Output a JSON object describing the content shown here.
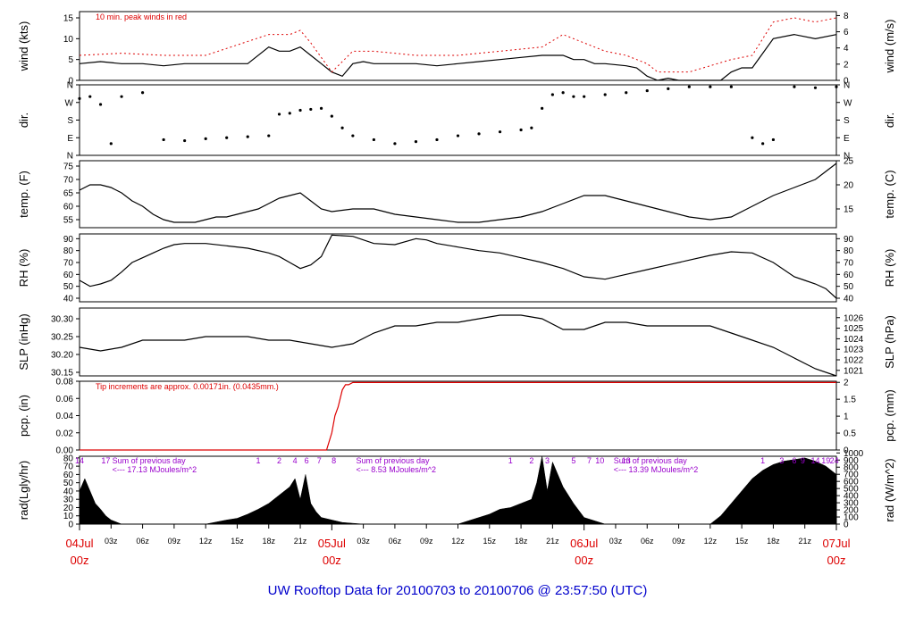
{
  "footer_title": "UW Rooftop Data for 20100703  to  20100706 @ 23:57:50  (UTC)",
  "colors": {
    "ink": "#000000",
    "precip": "#dd0000",
    "rad_annot": "#9900cc",
    "footer": "#0000cc",
    "date_red": "#dd0000"
  },
  "time_axis": {
    "hours_total": 72,
    "hour_ticks": [
      {
        "h": 3,
        "label": "03z"
      },
      {
        "h": 6,
        "label": "06z"
      },
      {
        "h": 9,
        "label": "09z"
      },
      {
        "h": 12,
        "label": "12z"
      },
      {
        "h": 15,
        "label": "15z"
      },
      {
        "h": 18,
        "label": "18z"
      },
      {
        "h": 21,
        "label": "21z"
      },
      {
        "h": 27,
        "label": "03z"
      },
      {
        "h": 30,
        "label": "06z"
      },
      {
        "h": 33,
        "label": "09z"
      },
      {
        "h": 36,
        "label": "12z"
      },
      {
        "h": 39,
        "label": "15z"
      },
      {
        "h": 42,
        "label": "18z"
      },
      {
        "h": 45,
        "label": "21z"
      },
      {
        "h": 51,
        "label": "03z"
      },
      {
        "h": 54,
        "label": "06z"
      },
      {
        "h": 57,
        "label": "09z"
      },
      {
        "h": 60,
        "label": "12z"
      },
      {
        "h": 63,
        "label": "15z"
      },
      {
        "h": 66,
        "label": "18z"
      },
      {
        "h": 69,
        "label": "21z"
      }
    ],
    "day_labels": [
      {
        "h": 0,
        "date": "04Jul",
        "hour": "00z"
      },
      {
        "h": 24,
        "date": "05Jul",
        "hour": "00z"
      },
      {
        "h": 48,
        "date": "06Jul",
        "hour": "00z"
      },
      {
        "h": 72,
        "date": "07Jul",
        "hour": "00z"
      }
    ]
  },
  "chart_data": [
    {
      "type": "line",
      "name_key": "wind",
      "ylabel_left": "wind (kts)",
      "ylabel_right": "wind (m/s)",
      "ylim": [
        0,
        16.5
      ],
      "left_ticks": [
        0,
        5,
        10,
        15
      ],
      "right_ticks": [
        {
          "v": 0,
          "label": "0"
        },
        {
          "v": 3.89,
          "label": "2"
        },
        {
          "v": 7.78,
          "label": "4"
        },
        {
          "v": 11.66,
          "label": "6"
        },
        {
          "v": 15.55,
          "label": "8"
        }
      ],
      "annotation": "10 min. peak winds in red",
      "series": [
        {
          "color": "#000000",
          "x": [
            0,
            2,
            4,
            6,
            8,
            10,
            12,
            14,
            16,
            18,
            19,
            20,
            21,
            22,
            23,
            24,
            25,
            26,
            27,
            28,
            30,
            32,
            34,
            36,
            38,
            40,
            42,
            44,
            46,
            47,
            48,
            49,
            50,
            52,
            53,
            54,
            55,
            56,
            57,
            58,
            59,
            60,
            61,
            62,
            63,
            64,
            66,
            68,
            70,
            72
          ],
          "y": [
            4,
            4.5,
            4,
            4,
            3.5,
            4,
            4,
            4,
            4,
            8,
            7,
            7,
            8,
            6,
            4,
            2,
            1,
            4,
            4.5,
            4,
            4,
            4,
            3.5,
            4,
            4.5,
            5,
            5.5,
            6,
            6,
            5,
            5,
            4,
            4,
            3.5,
            3,
            1,
            0,
            0.5,
            0,
            0,
            0,
            0,
            0,
            2,
            3,
            3,
            10,
            11,
            10,
            11
          ]
        },
        {
          "color": "#dd0000",
          "x": [
            0,
            4,
            8,
            12,
            18,
            20,
            21,
            22,
            24,
            26,
            28,
            32,
            36,
            40,
            44,
            46,
            48,
            50,
            52,
            54,
            55,
            58,
            62,
            64,
            66,
            68,
            70,
            72
          ],
          "y": [
            6,
            6.5,
            6,
            6,
            11,
            11,
            12,
            9,
            2,
            7,
            7,
            6,
            6,
            7,
            8,
            11,
            9,
            7,
            6,
            4,
            2,
            2,
            5,
            6,
            14,
            15,
            14,
            15
          ]
        }
      ]
    },
    {
      "type": "scatter",
      "name_key": "dir",
      "ylabel_left": "dir.",
      "ylabel_right": "dir.",
      "ylim": [
        0,
        360
      ],
      "left_ticks": [
        {
          "v": 0,
          "label": "N"
        },
        {
          "v": 90,
          "label": "E"
        },
        {
          "v": 180,
          "label": "S"
        },
        {
          "v": 270,
          "label": "W"
        },
        {
          "v": 360,
          "label": "N"
        }
      ],
      "right_ticks": [
        {
          "v": 0,
          "label": "N"
        },
        {
          "v": 90,
          "label": "E"
        },
        {
          "v": 180,
          "label": "S"
        },
        {
          "v": 270,
          "label": "W"
        },
        {
          "v": 360,
          "label": "N"
        }
      ],
      "x": [
        0,
        1,
        2,
        3,
        4,
        6,
        8,
        10,
        12,
        14,
        16,
        18,
        19,
        20,
        21,
        22,
        23,
        24,
        25,
        26,
        28,
        30,
        32,
        34,
        36,
        38,
        40,
        42,
        43,
        44,
        45,
        46,
        47,
        48,
        50,
        52,
        54,
        56,
        58,
        60,
        62,
        64,
        65,
        66,
        68,
        70,
        72
      ],
      "y": [
        290,
        300,
        260,
        60,
        300,
        320,
        80,
        75,
        85,
        90,
        95,
        100,
        210,
        215,
        230,
        235,
        240,
        200,
        140,
        100,
        80,
        60,
        70,
        80,
        100,
        110,
        120,
        130,
        140,
        240,
        310,
        320,
        300,
        300,
        310,
        320,
        330,
        340,
        350,
        350,
        350,
        90,
        60,
        80,
        350,
        345,
        350
      ]
    },
    {
      "type": "line",
      "name_key": "temp",
      "ylabel_left": "temp. (F)",
      "ylabel_right": "temp. (C)",
      "ylim": [
        52,
        77
      ],
      "left_ticks": [
        55,
        60,
        65,
        70,
        75
      ],
      "right_ticks": [
        {
          "v": 59,
          "label": "15"
        },
        {
          "v": 68,
          "label": "20"
        },
        {
          "v": 77,
          "label": "25"
        }
      ],
      "x": [
        0,
        1,
        2,
        3,
        4,
        5,
        6,
        7,
        8,
        9,
        10,
        11,
        12,
        13,
        14,
        15,
        16,
        17,
        18,
        19,
        20,
        21,
        22,
        23,
        24,
        26,
        28,
        30,
        32,
        34,
        36,
        38,
        40,
        42,
        44,
        46,
        48,
        50,
        52,
        54,
        56,
        58,
        60,
        62,
        64,
        66,
        68,
        70,
        71,
        72
      ],
      "y": [
        66,
        68,
        68,
        67,
        65,
        62,
        60,
        57,
        55,
        54,
        54,
        54,
        55,
        56,
        56,
        57,
        58,
        59,
        61,
        63,
        64,
        65,
        62,
        59,
        58,
        59,
        59,
        57,
        56,
        55,
        54,
        54,
        55,
        56,
        58,
        61,
        64,
        64,
        62,
        60,
        58,
        56,
        55,
        56,
        60,
        64,
        67,
        70,
        73,
        76
      ]
    },
    {
      "type": "line",
      "name_key": "rh",
      "ylabel_left": "RH (%)",
      "ylabel_right": "RH (%)",
      "ylim": [
        37,
        94
      ],
      "left_ticks": [
        40,
        50,
        60,
        70,
        80,
        90
      ],
      "right_ticks": [
        {
          "v": 40,
          "label": "40"
        },
        {
          "v": 50,
          "label": "50"
        },
        {
          "v": 60,
          "label": "60"
        },
        {
          "v": 70,
          "label": "70"
        },
        {
          "v": 80,
          "label": "80"
        },
        {
          "v": 90,
          "label": "90"
        }
      ],
      "x": [
        0,
        1,
        2,
        3,
        4,
        5,
        6,
        7,
        8,
        9,
        10,
        11,
        12,
        14,
        16,
        18,
        19,
        20,
        21,
        22,
        23,
        24,
        26,
        28,
        30,
        32,
        33,
        34,
        36,
        38,
        40,
        42,
        44,
        46,
        48,
        50,
        52,
        54,
        56,
        58,
        60,
        62,
        64,
        66,
        68,
        69,
        70,
        71,
        72
      ],
      "y": [
        55,
        50,
        52,
        55,
        62,
        70,
        74,
        78,
        82,
        85,
        86,
        86,
        86,
        84,
        82,
        78,
        75,
        70,
        65,
        68,
        75,
        93,
        92,
        86,
        85,
        90,
        89,
        86,
        83,
        80,
        78,
        74,
        70,
        65,
        58,
        56,
        60,
        64,
        68,
        72,
        76,
        79,
        78,
        70,
        58,
        55,
        52,
        48,
        40
      ]
    },
    {
      "type": "line",
      "name_key": "slp",
      "ylabel_left": "SLP (inHg)",
      "ylabel_right": "SLP (hPa)",
      "ylim": [
        30.14,
        30.33
      ],
      "left_ticks": [
        {
          "v": 30.15,
          "label": "30.15"
        },
        {
          "v": 30.2,
          "label": "30.20"
        },
        {
          "v": 30.25,
          "label": "30.25"
        },
        {
          "v": 30.3,
          "label": "30.30"
        }
      ],
      "right_ticks": [
        {
          "v": 30.1555,
          "label": "1021"
        },
        {
          "v": 30.185,
          "label": "1022"
        },
        {
          "v": 30.2145,
          "label": "1023"
        },
        {
          "v": 30.244,
          "label": "1024"
        },
        {
          "v": 30.2736,
          "label": "1025"
        },
        {
          "v": 30.3031,
          "label": "1026"
        }
      ],
      "x": [
        0,
        2,
        4,
        6,
        8,
        10,
        12,
        14,
        16,
        18,
        20,
        22,
        24,
        26,
        28,
        30,
        32,
        34,
        36,
        38,
        40,
        42,
        44,
        46,
        48,
        50,
        52,
        54,
        56,
        58,
        60,
        62,
        64,
        66,
        68,
        70,
        72
      ],
      "y": [
        30.22,
        30.21,
        30.22,
        30.24,
        30.24,
        30.24,
        30.25,
        30.25,
        30.25,
        30.24,
        30.24,
        30.23,
        30.22,
        30.23,
        30.26,
        30.28,
        30.28,
        30.29,
        30.29,
        30.3,
        30.31,
        30.31,
        30.3,
        30.27,
        30.27,
        30.29,
        30.29,
        30.28,
        30.28,
        30.28,
        30.28,
        30.26,
        30.24,
        30.22,
        30.19,
        30.16,
        30.14
      ]
    },
    {
      "type": "line",
      "name_key": "pcp",
      "ylabel_left": "pcp. (in)",
      "ylabel_right": "pcp. (mm)",
      "ylim": [
        0,
        0.08
      ],
      "left_ticks": [
        {
          "v": 0,
          "label": "0.00"
        },
        {
          "v": 0.02,
          "label": "0.02"
        },
        {
          "v": 0.04,
          "label": "0.04"
        },
        {
          "v": 0.06,
          "label": "0.06"
        },
        {
          "v": 0.08,
          "label": "0.08"
        }
      ],
      "right_ticks": [
        {
          "v": 0,
          "label": "0"
        },
        {
          "v": 0.01969,
          "label": "0.5"
        },
        {
          "v": 0.03937,
          "label": "1"
        },
        {
          "v": 0.05906,
          "label": "1.5"
        },
        {
          "v": 0.07874,
          "label": "2"
        }
      ],
      "annotation": "Tip increments are approx. 0.00171in. (0.0435mm.)",
      "x": [
        0,
        23.5,
        24,
        24.3,
        24.6,
        25,
        25.3,
        25.6,
        26,
        27,
        28,
        72
      ],
      "y": [
        0,
        0,
        0.02,
        0.04,
        0.05,
        0.07,
        0.076,
        0.076,
        0.0786,
        0.0786,
        0.0786,
        0.0786
      ]
    },
    {
      "type": "area",
      "name_key": "rad",
      "ylabel_left": "rad(Lgly/hr)",
      "ylabel_right": "rad (W/m^2)",
      "ylim": [
        0,
        82
      ],
      "left_ticks": [
        0,
        10,
        20,
        30,
        40,
        50,
        60,
        70,
        80
      ],
      "right_ticks": [
        {
          "v": 0,
          "label": "0"
        },
        {
          "v": 8.6,
          "label": "100"
        },
        {
          "v": 17.2,
          "label": "200"
        },
        {
          "v": 25.8,
          "label": "300"
        },
        {
          "v": 34.4,
          "label": "400"
        },
        {
          "v": 43,
          "label": "500"
        },
        {
          "v": 51.6,
          "label": "600"
        },
        {
          "v": 60.2,
          "label": "700"
        },
        {
          "v": 68.8,
          "label": "800"
        },
        {
          "v": 77.4,
          "label": "900"
        },
        {
          "v": 86,
          "label": "1000"
        }
      ],
      "x": [
        0,
        0.5,
        1,
        1.5,
        2,
        2.5,
        3,
        4,
        12,
        14,
        15,
        16,
        17,
        18,
        19,
        20,
        20.5,
        21,
        21.5,
        22,
        22.5,
        23,
        24,
        25,
        26,
        27,
        28,
        36,
        37,
        38,
        39,
        40,
        41,
        42,
        43,
        43.5,
        44,
        44.5,
        45,
        46,
        47,
        48,
        50,
        60,
        61,
        62,
        63,
        64,
        65,
        66,
        67,
        68,
        69,
        70,
        71,
        72
      ],
      "y": [
        40,
        55,
        40,
        25,
        18,
        10,
        5,
        0,
        0,
        5,
        7,
        12,
        18,
        25,
        35,
        45,
        55,
        30,
        60,
        25,
        15,
        8,
        5,
        2,
        1,
        0,
        0,
        0,
        4,
        8,
        12,
        18,
        20,
        25,
        30,
        50,
        82,
        40,
        75,
        45,
        25,
        8,
        0,
        0,
        10,
        25,
        40,
        55,
        65,
        72,
        76,
        78,
        80,
        76,
        70,
        60
      ]
    }
  ],
  "rad_annotations": {
    "hours_row": [
      {
        "h": 0,
        "label": "14"
      },
      {
        "h": 2.5,
        "label": "17"
      },
      {
        "h": 17,
        "label": "1"
      },
      {
        "h": 19,
        "label": "2"
      },
      {
        "h": 20.5,
        "label": "4"
      },
      {
        "h": 21.6,
        "label": "6"
      },
      {
        "h": 22.8,
        "label": "7"
      },
      {
        "h": 24.2,
        "label": "8"
      },
      {
        "h": 41,
        "label": "1"
      },
      {
        "h": 43,
        "label": "2"
      },
      {
        "h": 44.5,
        "label": "3"
      },
      {
        "h": 47,
        "label": "5"
      },
      {
        "h": 48.5,
        "label": "7"
      },
      {
        "h": 49.5,
        "label": "10"
      },
      {
        "h": 52,
        "label": "13"
      },
      {
        "h": 65,
        "label": "1"
      },
      {
        "h": 66.8,
        "label": "3"
      },
      {
        "h": 68,
        "label": "6"
      },
      {
        "h": 68.8,
        "label": "9"
      },
      {
        "h": 70,
        "label": "14"
      },
      {
        "h": 71,
        "label": "19"
      },
      {
        "h": 71.8,
        "label": "24"
      }
    ],
    "sum_label": "Sum of previous day",
    "sums": [
      {
        "h": 2.6,
        "text": "<--- 17.13 MJoules/m^2"
      },
      {
        "h": 25.8,
        "text": "<--- 8.53 MJoules/m^2"
      },
      {
        "h": 50.3,
        "text": "<--- 13.39 MJoules/m^2"
      }
    ]
  }
}
